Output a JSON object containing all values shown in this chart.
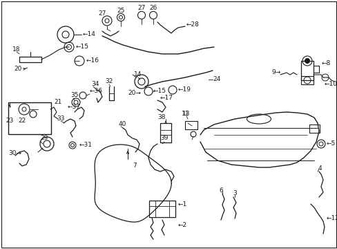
{
  "background_color": "#ffffff",
  "line_color": "#1a1a1a",
  "text_color": "#1a1a1a",
  "fig_width": 4.89,
  "fig_height": 3.6,
  "dpi": 100,
  "font_size": 6.5,
  "font_size_small": 5.5
}
